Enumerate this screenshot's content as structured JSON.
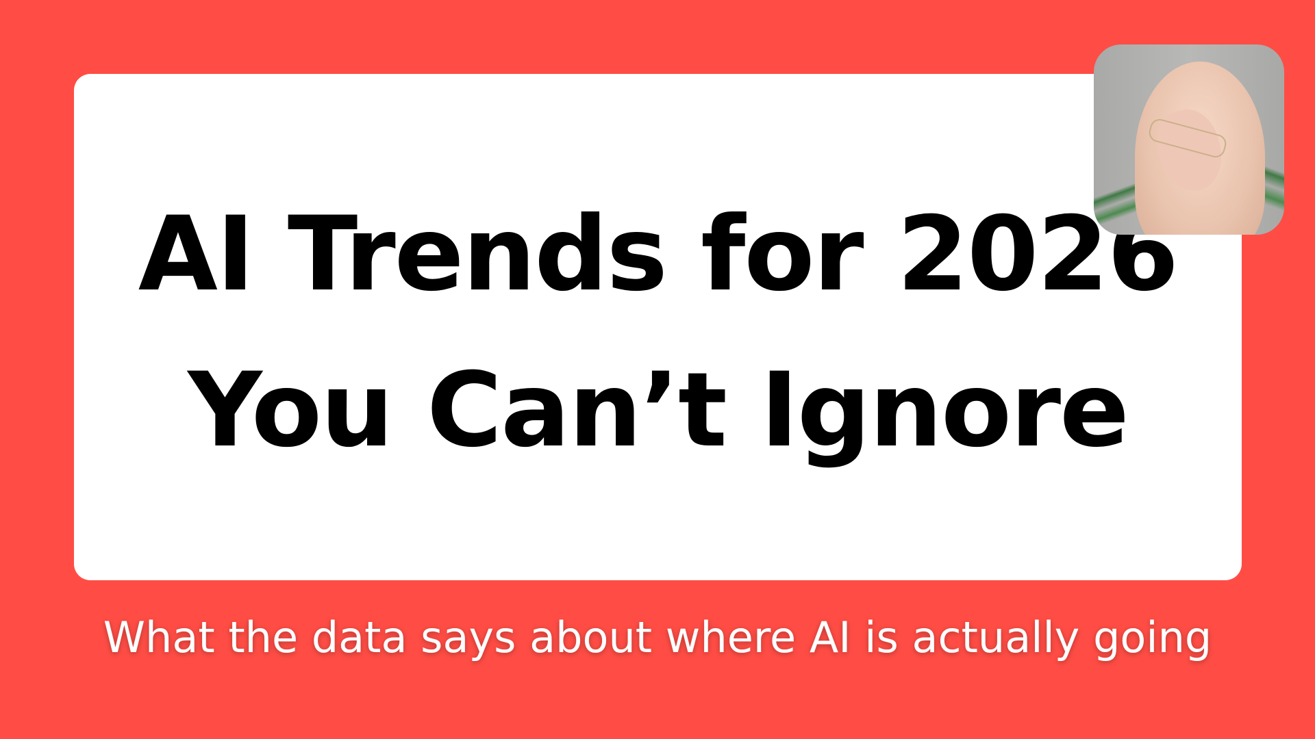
{
  "title": {
    "line1": "AI Trends for 2026",
    "line2": "You Can’t Ignore"
  },
  "subtitle": "What the data says about where AI is actually going",
  "colors": {
    "background": "#ff4d45",
    "card": "#ffffff",
    "title_text": "#000000",
    "subtitle_text": "#ffffff"
  },
  "photo": {
    "subject": "portrait-photo"
  }
}
